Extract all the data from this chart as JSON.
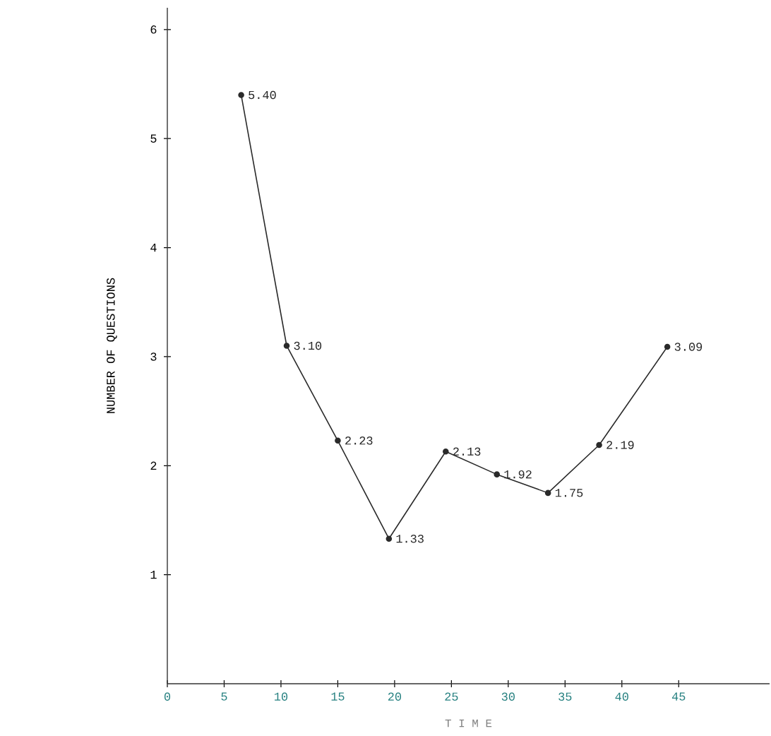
{
  "chart_data": {
    "type": "line",
    "xlabel": "T I M E",
    "ylabel": "NUMBER OF QUESTIONS",
    "x": [
      6.5,
      10.5,
      15,
      19.5,
      24.5,
      29,
      33.5,
      38,
      44
    ],
    "series": [
      {
        "color": "#2a2a2a",
        "values": [
          5.4,
          3.1,
          2.23,
          1.33,
          2.13,
          1.92,
          1.75,
          2.19,
          3.09
        ],
        "value_labels": [
          "5.40",
          "3.10",
          "2.23",
          "1.33",
          "2.13",
          "1.92",
          "1.75",
          "2.19",
          "3.09"
        ]
      }
    ],
    "xlim": [
      0,
      53
    ],
    "ylim": [
      0,
      6.2
    ],
    "xticks": [
      0,
      5,
      10,
      15,
      20,
      25,
      30,
      35,
      40,
      45
    ],
    "yticks": [
      1,
      2,
      3,
      4,
      5,
      6
    ],
    "marker": "circle",
    "line_style": "solid"
  }
}
